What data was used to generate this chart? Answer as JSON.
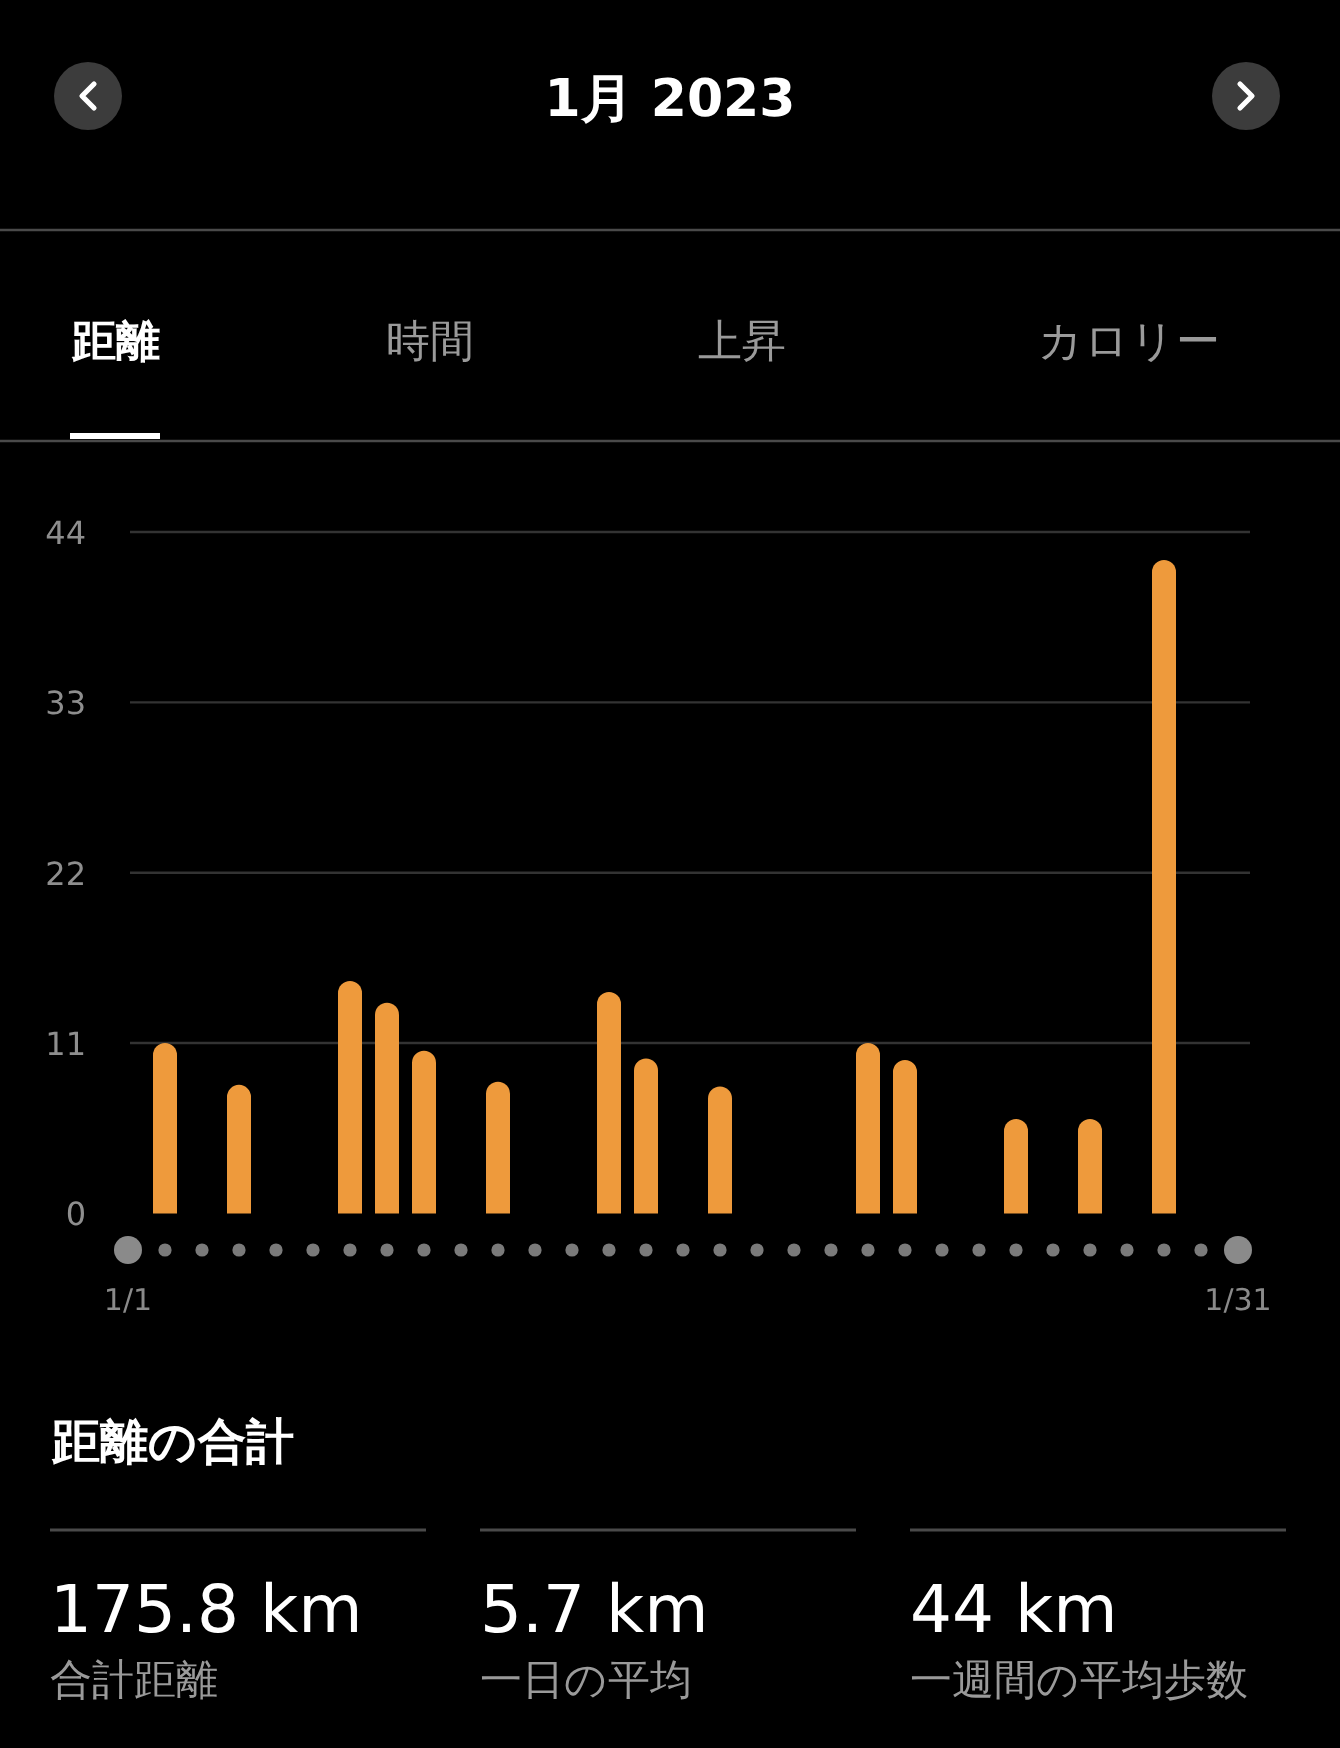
{
  "chart_data": [
    {
      "type": "bar",
      "title": "1月 2023",
      "annotations": [
        "距離",
        "時間",
        "上昇",
        "カロリー"
      ],
      "categories": [
        "1/1",
        null,
        null,
        null,
        null,
        null,
        null,
        null,
        null,
        null,
        null,
        null,
        null,
        null,
        null,
        null,
        null,
        null,
        null,
        null,
        null,
        null,
        null,
        null,
        null,
        null,
        null,
        null,
        null,
        null,
        "1/31"
      ],
      "values": [
        null,
        11.0,
        null,
        8.3,
        null,
        null,
        15.0,
        13.6,
        10.5,
        null,
        8.5,
        null,
        null,
        14.3,
        10.0,
        null,
        8.2,
        null,
        null,
        null,
        11.0,
        9.9,
        null,
        null,
        6.1,
        null,
        6.1,
        null,
        42.2,
        null,
        null
      ],
      "color": "#ee9a3c",
      "ylim": [
        0,
        44
      ],
      "yticks": [
        0,
        11,
        22,
        33,
        44
      ],
      "grid": "y"
    },
    {
      "type": "other",
      "title": "距離の合計",
      "annotations": [
        "175.8 km",
        "合計距離",
        "5.7 km",
        "一日の平均",
        "44 km",
        "一週間の平均歩数"
      ]
    }
  ]
}
